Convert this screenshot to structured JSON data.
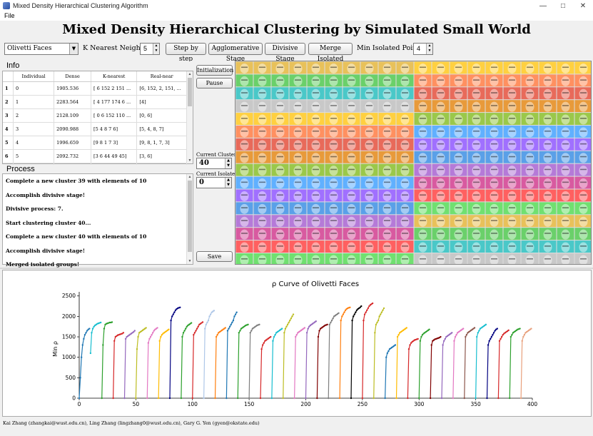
{
  "window": {
    "title": "Mixed Density Hierarchical Clustering Algorithm"
  },
  "menu": {
    "file": "File"
  },
  "header": {
    "title": "Mixed Density Hierarchical Clustering by Simulated Small World"
  },
  "toolbar": {
    "dataset": "Olivetti Faces",
    "knn_label": "K Nearest Neighbors",
    "knn_value": "5",
    "step_label": "Step by step",
    "agglomerative_label": "Agglomerative Stage",
    "divisive_label": "Divisive Stage",
    "merge_label": "Merge Isolated",
    "min_isolated_label": "Min Isolated Points",
    "min_isolated_value": "4"
  },
  "info": {
    "label": "Info",
    "columns": [
      "",
      "Individual",
      "Dense",
      "K-nearest",
      "Real-near"
    ],
    "rows": [
      [
        "1",
        "0",
        "1905.536",
        "[ 6 152   2 151 ...",
        "[6, 152, 2, 151, ..."
      ],
      [
        "2",
        "1",
        "2283.564",
        "[ 4 177 174   6 ...",
        "[4]"
      ],
      [
        "3",
        "2",
        "2128.109",
        "[  0   6 152 110 ...",
        "[0, 6]"
      ],
      [
        "4",
        "3",
        "2090.988",
        "[5 4 8 7 6]",
        "[5, 4, 8, 7]"
      ],
      [
        "5",
        "4",
        "1996.659",
        "[9 8 1 7 3]",
        "[9, 8, 1, 7, 3]"
      ],
      [
        "6",
        "5",
        "2092.732",
        "[3  6 44 49 45]",
        "[3, 6]"
      ],
      [
        "7",
        "6",
        "2003.3",
        "[  0   5 158   2 184]",
        "[0, 5, 158, 2]"
      ]
    ]
  },
  "process": {
    "label": "Process",
    "lines": [
      "Complete a new cluster 39 with elements of 10",
      "Accomplish divisive stage!",
      "Divisive process: 7.",
      "Start clustering cluster 40...",
      "Complete a new cluster 40 with elements of 10",
      "Accomplish divisive stage!",
      "Merged isolated groups!"
    ]
  },
  "controls": {
    "init_label": "Initialization",
    "pause_label": "Pause",
    "current_clusters_label": "Current Clusters",
    "current_clusters_value": "40",
    "current_isolated_label": "Current Isolated",
    "current_isolated_value": "0",
    "save_label": "Save"
  },
  "footer": {
    "credits": "Kai Zhang (zhangkai@wust.edu.cn), Ling Zhang (lingzhang0@wust.edu.cn), Gary G. Yen (gyen@okstate.edu)"
  },
  "chart_data": {
    "type": "line",
    "title": "ρ Curve of Olivetti Faces",
    "xlabel": "",
    "ylabel": "Min ρ",
    "xlim": [
      0,
      400
    ],
    "ylim": [
      0,
      2600
    ],
    "xticks": [
      0,
      50,
      100,
      150,
      200,
      250,
      300,
      350,
      400
    ],
    "yticks": [
      0,
      500,
      1000,
      1500,
      2000,
      2500
    ],
    "grid": false,
    "series": [
      {
        "color": "#1f77b4",
        "x": [
          0,
          1,
          2,
          3,
          4,
          5,
          6,
          7,
          8,
          9
        ],
        "y": [
          0,
          500,
          1000,
          1300,
          1450,
          1550,
          1600,
          1650,
          1680,
          1700
        ]
      },
      {
        "color": "#17becf",
        "x": [
          10,
          11,
          12,
          13,
          14,
          15,
          16,
          17,
          18,
          19
        ],
        "y": [
          1100,
          1600,
          1700,
          1750,
          1780,
          1800,
          1820,
          1830,
          1840,
          1850
        ]
      },
      {
        "color": "#2ca02c",
        "x": [
          20,
          21,
          22,
          23,
          24,
          25,
          26,
          27,
          28,
          29
        ],
        "y": [
          0,
          1300,
          1700,
          1800,
          1820,
          1830,
          1840,
          1850,
          1850,
          1860
        ]
      },
      {
        "color": "#d62728",
        "x": [
          30,
          31,
          32,
          33,
          34,
          35,
          36,
          37,
          38,
          39
        ],
        "y": [
          0,
          1400,
          1500,
          1520,
          1540,
          1550,
          1560,
          1570,
          1580,
          1600
        ]
      },
      {
        "color": "#9467bd",
        "x": [
          40,
          41,
          42,
          43,
          44,
          45,
          46,
          47,
          48,
          49
        ],
        "y": [
          0,
          1450,
          1500,
          1520,
          1540,
          1560,
          1580,
          1600,
          1620,
          1650
        ]
      },
      {
        "color": "#bcbd22",
        "x": [
          50,
          51,
          52,
          53,
          54,
          55,
          56,
          57,
          58,
          59
        ],
        "y": [
          0,
          1200,
          1500,
          1600,
          1620,
          1640,
          1660,
          1680,
          1700,
          1720
        ]
      },
      {
        "color": "#e377c2",
        "x": [
          60,
          61,
          62,
          63,
          64,
          65,
          66,
          67,
          68,
          69
        ],
        "y": [
          0,
          1350,
          1450,
          1500,
          1550,
          1600,
          1650,
          1680,
          1700,
          1720
        ]
      },
      {
        "color": "#ffbb00",
        "x": [
          70,
          71,
          72,
          73,
          74,
          75,
          76,
          77,
          78,
          79
        ],
        "y": [
          0,
          1400,
          1500,
          1550,
          1580,
          1600,
          1620,
          1640,
          1660,
          1680
        ]
      },
      {
        "color": "#000080",
        "x": [
          80,
          81,
          82,
          83,
          84,
          85,
          86,
          87,
          88,
          89
        ],
        "y": [
          0,
          1900,
          2000,
          2050,
          2100,
          2150,
          2180,
          2200,
          2210,
          2220
        ]
      },
      {
        "color": "#2ca02c",
        "x": [
          90,
          91,
          92,
          93,
          94,
          95,
          96,
          97,
          98,
          99
        ],
        "y": [
          0,
          1500,
          1600,
          1650,
          1700,
          1750,
          1780,
          1800,
          1820,
          1840
        ]
      },
      {
        "color": "#d62728",
        "x": [
          100,
          101,
          102,
          103,
          104,
          105,
          106,
          107,
          108,
          109
        ],
        "y": [
          0,
          1550,
          1600,
          1650,
          1700,
          1750,
          1800,
          1820,
          1840,
          1860
        ]
      },
      {
        "color": "#aec7e8",
        "x": [
          110,
          111,
          112,
          113,
          114,
          115,
          116,
          117,
          118,
          119
        ],
        "y": [
          0,
          1700,
          1800,
          1850,
          1900,
          2000,
          2050,
          2100,
          2120,
          2140
        ]
      },
      {
        "color": "#ff7f0e",
        "x": [
          120,
          121,
          122,
          123,
          124,
          125,
          126,
          127,
          128,
          129
        ],
        "y": [
          0,
          1500,
          1550,
          1600,
          1620,
          1640,
          1660,
          1680,
          1700,
          1720
        ]
      },
      {
        "color": "#1f77b4",
        "x": [
          130,
          131,
          132,
          133,
          134,
          135,
          136,
          137,
          138,
          139
        ],
        "y": [
          0,
          1650,
          1700,
          1750,
          1800,
          1850,
          1900,
          2000,
          2050,
          2100
        ]
      },
      {
        "color": "#2ca02c",
        "x": [
          140,
          141,
          142,
          143,
          144,
          145,
          146,
          147,
          148,
          149
        ],
        "y": [
          0,
          1600,
          1650,
          1700,
          1720,
          1740,
          1760,
          1780,
          1790,
          1800
        ]
      },
      {
        "color": "#7f7f7f",
        "x": [
          150,
          151,
          152,
          153,
          154,
          155,
          156,
          157,
          158,
          159
        ],
        "y": [
          0,
          1600,
          1650,
          1700,
          1720,
          1740,
          1760,
          1780,
          1790,
          1800
        ]
      },
      {
        "color": "#d62728",
        "x": [
          160,
          161,
          162,
          163,
          164,
          165,
          166,
          167,
          168,
          169
        ],
        "y": [
          0,
          1200,
          1300,
          1350,
          1400,
          1420,
          1440,
          1460,
          1480,
          1500
        ]
      },
      {
        "color": "#17becf",
        "x": [
          170,
          171,
          172,
          173,
          174,
          175,
          176,
          177,
          178,
          179
        ],
        "y": [
          0,
          1400,
          1500,
          1550,
          1600,
          1620,
          1640,
          1660,
          1680,
          1700
        ]
      },
      {
        "color": "#bcbd22",
        "x": [
          180,
          181,
          182,
          183,
          184,
          185,
          186,
          187,
          188,
          189
        ],
        "y": [
          0,
          1600,
          1700,
          1750,
          1800,
          1850,
          1900,
          1950,
          2000,
          2050
        ]
      },
      {
        "color": "#e377c2",
        "x": [
          190,
          191,
          192,
          193,
          194,
          195,
          196,
          197,
          198,
          199
        ],
        "y": [
          0,
          1500,
          1550,
          1600,
          1620,
          1640,
          1660,
          1680,
          1700,
          1720
        ]
      },
      {
        "color": "#9467bd",
        "x": [
          200,
          201,
          202,
          203,
          204,
          205,
          206,
          207,
          208,
          209
        ],
        "y": [
          0,
          1600,
          1700,
          1750,
          1780,
          1800,
          1820,
          1840,
          1860,
          1880
        ]
      },
      {
        "color": "#800000",
        "x": [
          210,
          211,
          212,
          213,
          214,
          215,
          216,
          217,
          218,
          219
        ],
        "y": [
          0,
          1500,
          1650,
          1700,
          1720,
          1740,
          1760,
          1780,
          1790,
          1800
        ]
      },
      {
        "color": "#7f7f7f",
        "x": [
          220,
          221,
          222,
          223,
          224,
          225,
          226,
          227,
          228,
          229
        ],
        "y": [
          0,
          1800,
          1850,
          1900,
          1950,
          2000,
          2020,
          2040,
          2060,
          2080
        ]
      },
      {
        "color": "#ff7f0e",
        "x": [
          230,
          231,
          232,
          233,
          234,
          235,
          236,
          237,
          238,
          239
        ],
        "y": [
          0,
          1900,
          2000,
          2050,
          2100,
          2150,
          2180,
          2200,
          2210,
          2220
        ]
      },
      {
        "color": "#000000",
        "x": [
          240,
          241,
          242,
          243,
          244,
          245,
          246,
          247,
          248,
          249
        ],
        "y": [
          0,
          1900,
          2000,
          2050,
          2100,
          2150,
          2180,
          2200,
          2220,
          2250
        ]
      },
      {
        "color": "#d62728",
        "x": [
          250,
          251,
          252,
          253,
          254,
          255,
          256,
          257,
          258,
          259
        ],
        "y": [
          0,
          1900,
          2050,
          2100,
          2150,
          2200,
          2250,
          2280,
          2300,
          2320
        ]
      },
      {
        "color": "#bcbd22",
        "x": [
          260,
          261,
          262,
          263,
          264,
          265,
          266,
          267,
          268,
          269
        ],
        "y": [
          0,
          1600,
          1800,
          1850,
          1900,
          2000,
          2050,
          2100,
          2150,
          2200
        ]
      },
      {
        "color": "#1f77b4",
        "x": [
          270,
          271,
          272,
          273,
          274,
          275,
          276,
          277,
          278,
          279
        ],
        "y": [
          0,
          1000,
          1100,
          1150,
          1200,
          1220,
          1240,
          1260,
          1280,
          1300
        ]
      },
      {
        "color": "#ffbb00",
        "x": [
          280,
          281,
          282,
          283,
          284,
          285,
          286,
          287,
          288,
          289
        ],
        "y": [
          0,
          1500,
          1550,
          1600,
          1620,
          1640,
          1660,
          1680,
          1700,
          1720
        ]
      },
      {
        "color": "#d62728",
        "x": [
          290,
          291,
          292,
          293,
          294,
          295,
          296,
          297,
          298,
          299
        ],
        "y": [
          0,
          1200,
          1300,
          1350,
          1380,
          1400,
          1420,
          1430,
          1440,
          1450
        ]
      },
      {
        "color": "#2ca02c",
        "x": [
          300,
          301,
          302,
          303,
          304,
          305,
          306,
          307,
          308,
          309
        ],
        "y": [
          0,
          1400,
          1500,
          1550,
          1580,
          1600,
          1620,
          1640,
          1660,
          1680
        ]
      },
      {
        "color": "#800000",
        "x": [
          310,
          311,
          312,
          313,
          314,
          315,
          316,
          317,
          318,
          319
        ],
        "y": [
          0,
          1300,
          1400,
          1420,
          1440,
          1450,
          1460,
          1470,
          1480,
          1500
        ]
      },
      {
        "color": "#9467bd",
        "x": [
          320,
          321,
          322,
          323,
          324,
          325,
          326,
          327,
          328,
          329
        ],
        "y": [
          0,
          1300,
          1400,
          1450,
          1500,
          1520,
          1540,
          1560,
          1580,
          1600
        ]
      },
      {
        "color": "#e377c2",
        "x": [
          330,
          331,
          332,
          333,
          334,
          335,
          336,
          337,
          338,
          339
        ],
        "y": [
          0,
          1400,
          1500,
          1550,
          1600,
          1620,
          1640,
          1660,
          1680,
          1700
        ]
      },
      {
        "color": "#8c564b",
        "x": [
          340,
          341,
          342,
          343,
          344,
          345,
          346,
          347,
          348,
          349
        ],
        "y": [
          0,
          1500,
          1550,
          1600,
          1620,
          1640,
          1660,
          1680,
          1700,
          1720
        ]
      },
      {
        "color": "#17becf",
        "x": [
          350,
          351,
          352,
          353,
          354,
          355,
          356,
          357,
          358,
          359
        ],
        "y": [
          0,
          1500,
          1600,
          1650,
          1700,
          1720,
          1740,
          1760,
          1780,
          1800
        ]
      },
      {
        "color": "#000080",
        "x": [
          360,
          361,
          362,
          363,
          364,
          365,
          366,
          367,
          368,
          369
        ],
        "y": [
          0,
          1300,
          1400,
          1450,
          1500,
          1550,
          1600,
          1650,
          1680,
          1700
        ]
      },
      {
        "color": "#d62728",
        "x": [
          370,
          371,
          372,
          373,
          374,
          375,
          376,
          377,
          378,
          379
        ],
        "y": [
          0,
          1400,
          1450,
          1500,
          1550,
          1580,
          1600,
          1620,
          1640,
          1660
        ]
      },
      {
        "color": "#2ca02c",
        "x": [
          380,
          381,
          382,
          383,
          384,
          385,
          386,
          387,
          388,
          389
        ],
        "y": [
          0,
          1500,
          1550,
          1600,
          1620,
          1640,
          1660,
          1680,
          1690,
          1700
        ]
      },
      {
        "color": "#e8a07c",
        "x": [
          390,
          391,
          392,
          393,
          394,
          395,
          396,
          397,
          398,
          399
        ],
        "y": [
          0,
          1400,
          1500,
          1550,
          1600,
          1620,
          1640,
          1660,
          1680,
          1700
        ]
      }
    ]
  }
}
